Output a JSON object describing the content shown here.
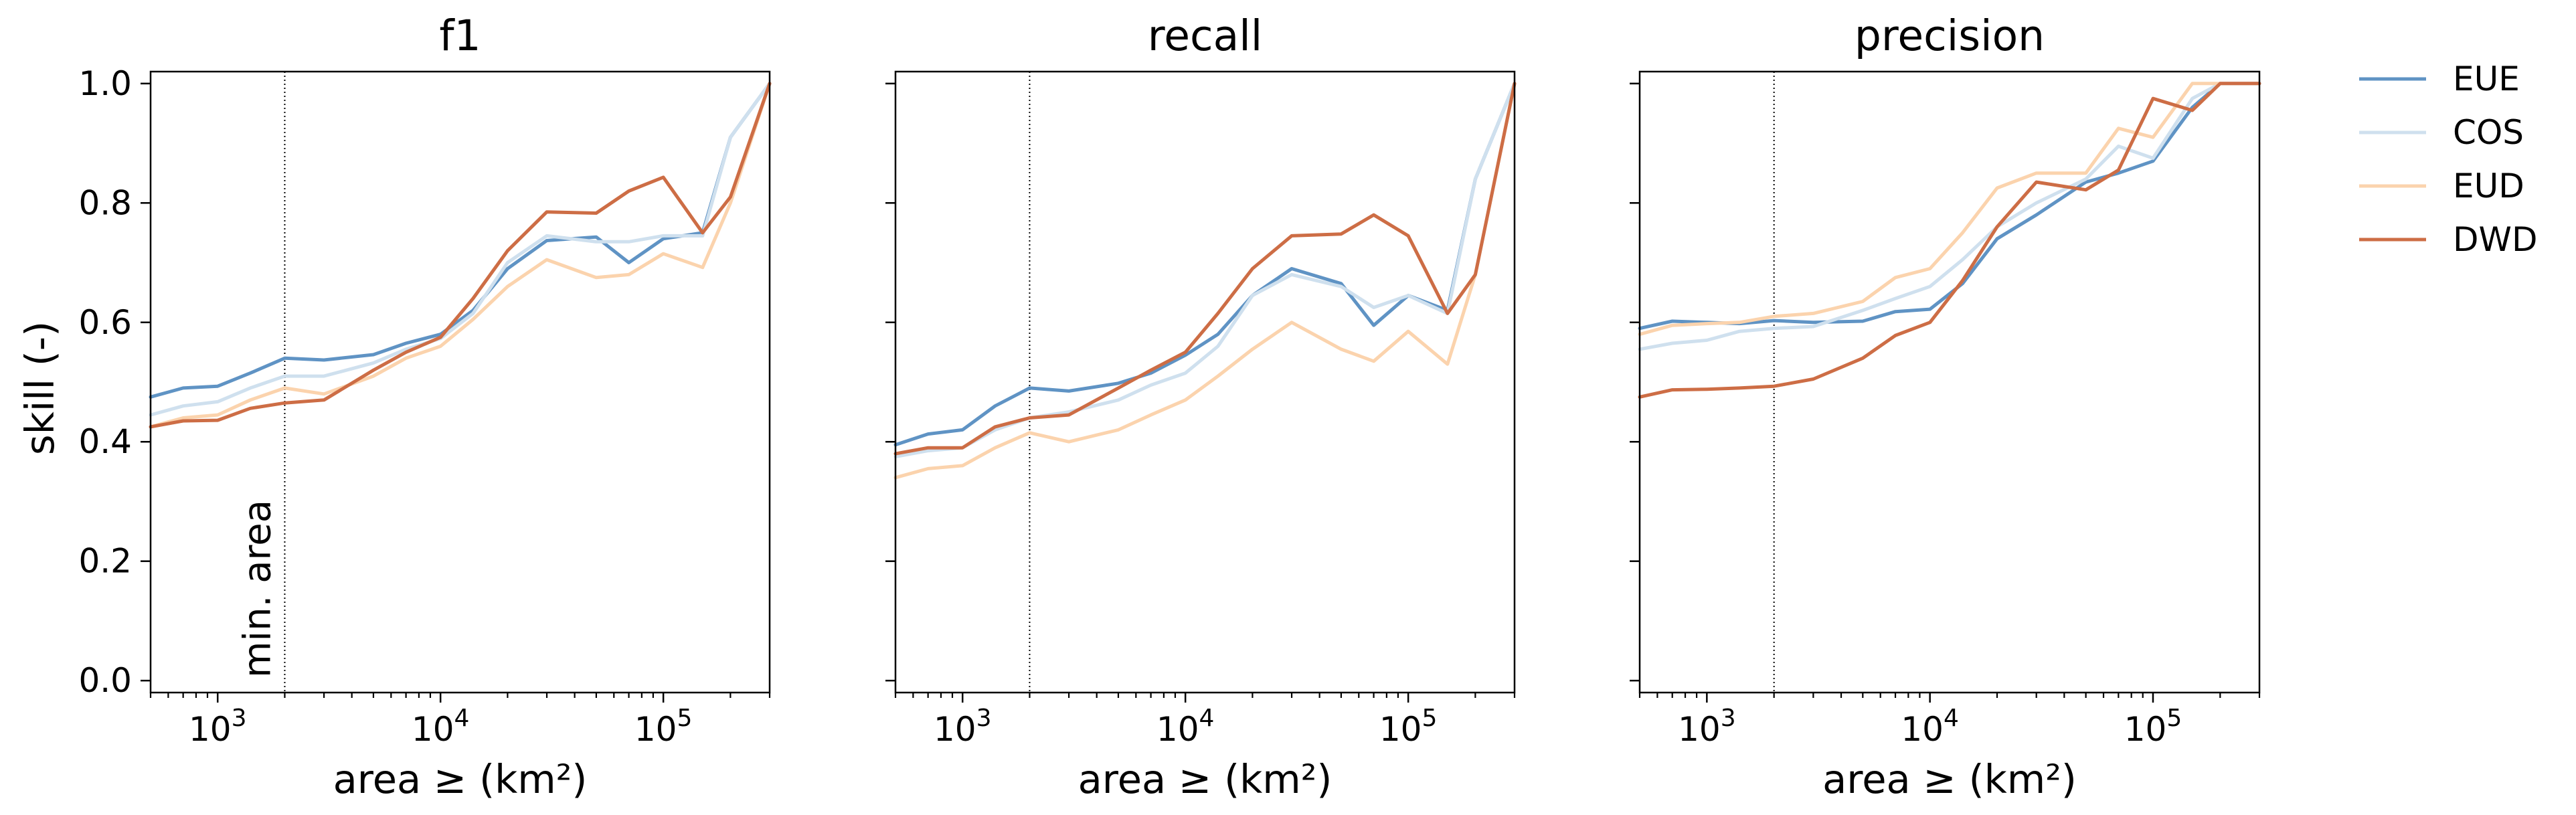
{
  "ylabel": "skill (-)",
  "xlabel": "area ≥ (km²)",
  "annotation": "min. area",
  "min_area": 2000,
  "legend": {
    "placement": "right-outside",
    "entries": [
      "EUE",
      "COS",
      "EUD",
      "DWD"
    ]
  },
  "colors": {
    "EUE": "#5f93c4",
    "COS": "#cfe0ee",
    "EUD": "#fbd3ad",
    "DWD": "#cd6d45"
  },
  "chart_data": [
    {
      "type": "line",
      "title": "f1",
      "xscale": "log",
      "xlim": [
        500,
        300000
      ],
      "ylim": [
        -0.02,
        1.02
      ],
      "yticks": [
        0.0,
        0.2,
        0.4,
        0.6,
        0.8,
        1.0
      ],
      "ytick_labels": [
        "0.0",
        "0.2",
        "0.4",
        "0.6",
        "0.8",
        "1.0"
      ],
      "xticks": [
        1000,
        10000,
        100000
      ],
      "xtick_labels": [
        {
          "base": "10",
          "exp": "3"
        },
        {
          "base": "10",
          "exp": "4"
        },
        {
          "base": "10",
          "exp": "5"
        }
      ],
      "x": [
        500,
        700,
        1000,
        1400,
        2000,
        3000,
        5000,
        7000,
        10000,
        14000,
        20000,
        30000,
        50000,
        70000,
        100000,
        150000,
        200000,
        300000
      ],
      "series": [
        {
          "name": "EUE",
          "values": [
            0.475,
            0.49,
            0.493,
            0.515,
            0.54,
            0.537,
            0.546,
            0.565,
            0.58,
            0.62,
            0.69,
            0.737,
            0.743,
            0.7,
            0.74,
            0.75,
            0.91,
            1.0
          ]
        },
        {
          "name": "COS",
          "values": [
            0.445,
            0.46,
            0.467,
            0.49,
            0.51,
            0.51,
            0.532,
            0.555,
            0.573,
            0.615,
            0.7,
            0.745,
            0.735,
            0.735,
            0.745,
            0.745,
            0.91,
            1.0
          ]
        },
        {
          "name": "EUD",
          "values": [
            0.425,
            0.44,
            0.445,
            0.47,
            0.49,
            0.48,
            0.51,
            0.54,
            0.56,
            0.605,
            0.66,
            0.705,
            0.675,
            0.68,
            0.715,
            0.692,
            0.8,
            1.0
          ]
        },
        {
          "name": "DWD",
          "values": [
            0.425,
            0.435,
            0.436,
            0.456,
            0.465,
            0.47,
            0.52,
            0.55,
            0.575,
            0.64,
            0.72,
            0.785,
            0.783,
            0.82,
            0.843,
            0.75,
            0.81,
            1.0
          ]
        }
      ]
    },
    {
      "type": "line",
      "title": "recall",
      "xscale": "log",
      "xlim": [
        500,
        300000
      ],
      "ylim": [
        -0.02,
        1.02
      ],
      "yticks": [
        0.0,
        0.2,
        0.4,
        0.6,
        0.8,
        1.0
      ],
      "ytick_labels": [],
      "xticks": [
        1000,
        10000,
        100000
      ],
      "xtick_labels": [
        {
          "base": "10",
          "exp": "3"
        },
        {
          "base": "10",
          "exp": "4"
        },
        {
          "base": "10",
          "exp": "5"
        }
      ],
      "x": [
        500,
        700,
        1000,
        1400,
        2000,
        3000,
        5000,
        7000,
        10000,
        14000,
        20000,
        30000,
        50000,
        70000,
        100000,
        150000,
        200000,
        300000
      ],
      "series": [
        {
          "name": "EUE",
          "values": [
            0.395,
            0.413,
            0.42,
            0.46,
            0.49,
            0.485,
            0.498,
            0.515,
            0.545,
            0.58,
            0.645,
            0.69,
            0.665,
            0.595,
            0.645,
            0.62,
            0.84,
            1.0
          ]
        },
        {
          "name": "COS",
          "values": [
            0.375,
            0.385,
            0.39,
            0.42,
            0.44,
            0.45,
            0.47,
            0.495,
            0.515,
            0.56,
            0.645,
            0.68,
            0.66,
            0.625,
            0.645,
            0.615,
            0.84,
            1.0
          ]
        },
        {
          "name": "EUD",
          "values": [
            0.34,
            0.355,
            0.36,
            0.39,
            0.415,
            0.4,
            0.42,
            0.445,
            0.47,
            0.51,
            0.555,
            0.6,
            0.555,
            0.535,
            0.585,
            0.53,
            0.68,
            1.0
          ]
        },
        {
          "name": "DWD",
          "values": [
            0.38,
            0.39,
            0.39,
            0.425,
            0.44,
            0.445,
            0.49,
            0.52,
            0.55,
            0.615,
            0.69,
            0.745,
            0.748,
            0.78,
            0.745,
            0.615,
            0.68,
            1.0
          ]
        }
      ]
    },
    {
      "type": "line",
      "title": "precision",
      "xscale": "log",
      "xlim": [
        500,
        300000
      ],
      "ylim": [
        -0.02,
        1.02
      ],
      "yticks": [
        0.0,
        0.2,
        0.4,
        0.6,
        0.8,
        1.0
      ],
      "ytick_labels": [],
      "xticks": [
        1000,
        10000,
        100000
      ],
      "xtick_labels": [
        {
          "base": "10",
          "exp": "3"
        },
        {
          "base": "10",
          "exp": "4"
        },
        {
          "base": "10",
          "exp": "5"
        }
      ],
      "x": [
        500,
        700,
        1000,
        1400,
        2000,
        3000,
        5000,
        7000,
        10000,
        14000,
        20000,
        30000,
        50000,
        70000,
        100000,
        150000,
        200000,
        300000
      ],
      "series": [
        {
          "name": "EUE",
          "values": [
            0.59,
            0.602,
            0.6,
            0.598,
            0.603,
            0.6,
            0.602,
            0.618,
            0.622,
            0.665,
            0.74,
            0.78,
            0.835,
            0.85,
            0.87,
            0.96,
            1.0,
            1.0
          ]
        },
        {
          "name": "COS",
          "values": [
            0.555,
            0.565,
            0.57,
            0.585,
            0.59,
            0.593,
            0.62,
            0.64,
            0.66,
            0.705,
            0.76,
            0.8,
            0.84,
            0.895,
            0.875,
            0.975,
            1.0,
            1.0
          ]
        },
        {
          "name": "EUD",
          "values": [
            0.58,
            0.595,
            0.598,
            0.6,
            0.61,
            0.615,
            0.635,
            0.675,
            0.69,
            0.75,
            0.825,
            0.85,
            0.85,
            0.925,
            0.91,
            1.0,
            1.0,
            1.0
          ]
        },
        {
          "name": "DWD",
          "values": [
            0.475,
            0.487,
            0.488,
            0.49,
            0.493,
            0.505,
            0.54,
            0.578,
            0.6,
            0.67,
            0.76,
            0.835,
            0.822,
            0.855,
            0.975,
            0.955,
            1.0,
            1.0
          ]
        }
      ]
    }
  ]
}
